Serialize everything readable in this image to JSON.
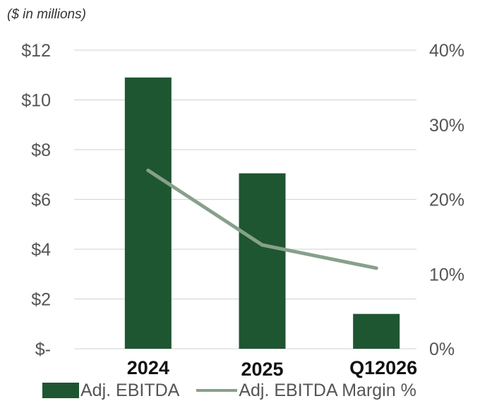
{
  "chart_data": {
    "type": "bar",
    "subtitle": "($ in millions)",
    "categories": [
      "2024",
      "2025",
      "Q12026"
    ],
    "series": [
      {
        "name": "Adj. EBITDA",
        "type": "bar",
        "axis": "left",
        "values": [
          10.9,
          7.05,
          1.4
        ],
        "color": "#1e5631"
      },
      {
        "name": "Adj. EBITDA Margin %",
        "type": "line",
        "axis": "right",
        "values": [
          23.9,
          13.9,
          10.8
        ],
        "color": "#87a08b"
      }
    ],
    "y_left": {
      "ylim": [
        0,
        12
      ],
      "ticks": [
        0,
        2,
        4,
        6,
        8,
        10,
        12
      ],
      "tick_labels": [
        "$-",
        "$2",
        "$4",
        "$6",
        "$8",
        "$10",
        "$12"
      ]
    },
    "y_right": {
      "ylim": [
        0,
        40
      ],
      "ticks": [
        0,
        10,
        20,
        30,
        40
      ],
      "tick_labels": [
        "0%",
        "10%",
        "20%",
        "30%",
        "40%"
      ]
    },
    "grid": true,
    "legend": "bottom",
    "colors": {
      "grid": "#d9d9d9",
      "tick_text": "#555555"
    }
  }
}
